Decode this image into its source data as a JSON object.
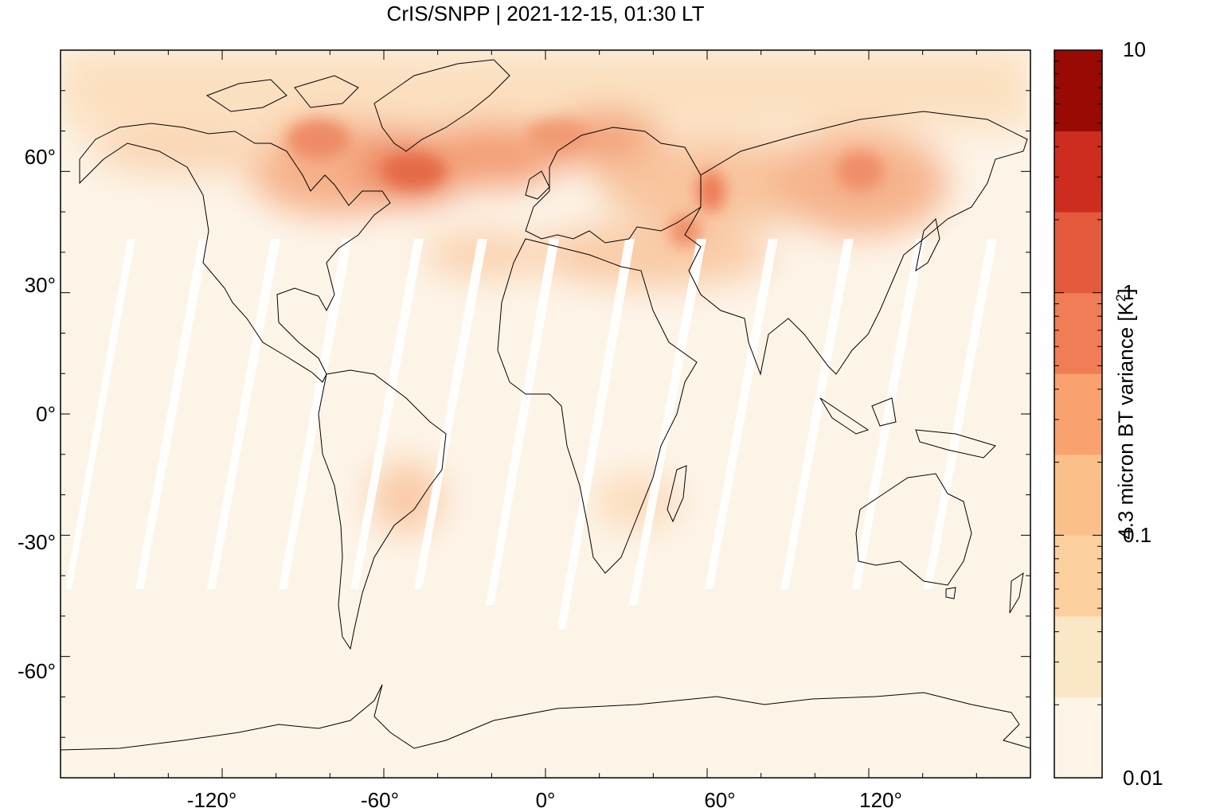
{
  "title": "CrIS/SNPP | 2021-12-15, 01:30 LT",
  "axes": {
    "x_ticks": [
      "-120°",
      "-60°",
      "0°",
      "60°",
      "120°"
    ],
    "y_ticks": [
      "60°",
      "30°",
      "0°",
      "-30°",
      "-60°"
    ]
  },
  "colorbar": {
    "label_prefix": "4.3 micron BT variance [K",
    "label_exp": "2",
    "label_suffix": "]",
    "tick_labels": [
      "10",
      "1",
      "0.1",
      "0.01"
    ],
    "scale": "log",
    "range": [
      0.01,
      10
    ],
    "levels": [
      {
        "color": "#fdf4e8"
      },
      {
        "color": "#fbe6c5"
      },
      {
        "color": "#fbd09e"
      },
      {
        "color": "#fbc08a"
      },
      {
        "color": "#f9a270"
      },
      {
        "color": "#f07d55"
      },
      {
        "color": "#e35a3c"
      },
      {
        "color": "#cc2d1f"
      },
      {
        "color": "#990a05"
      }
    ]
  },
  "chart_data": {
    "type": "heatmap",
    "title": "CrIS/SNPP | 2021-12-15, 01:30 LT",
    "x_range": [
      -180,
      180
    ],
    "y_range": [
      -90,
      90
    ],
    "x_ticks": [
      -120,
      -60,
      0,
      60,
      120
    ],
    "y_ticks": [
      60,
      30,
      0,
      -30,
      -60
    ],
    "colorbar_label": "4.3 micron BT variance [K2]",
    "colorbar_range": [
      0.01,
      10
    ],
    "colorbar_scale": "log",
    "background_value": 0.02,
    "regions": [
      {
        "lon_min": -180,
        "lon_max": 180,
        "lat_min": 70,
        "lat_max": 90,
        "value": 0.06
      },
      {
        "lon_min": -110,
        "lon_max": -50,
        "lat_min": 50,
        "lat_max": 70,
        "value": 0.5
      },
      {
        "lon_min": -60,
        "lon_max": -20,
        "lat_min": 55,
        "lat_max": 70,
        "value": 0.8
      },
      {
        "lon_min": -40,
        "lon_max": 30,
        "lat_min": 55,
        "lat_max": 70,
        "value": 0.6
      },
      {
        "lon_min": 30,
        "lon_max": 180,
        "lat_min": 40,
        "lat_max": 70,
        "value": 0.25
      },
      {
        "lon_min": 50,
        "lon_max": 70,
        "lat_min": 45,
        "lat_max": 60,
        "value": 0.7
      },
      {
        "lon_min": 90,
        "lon_max": 140,
        "lat_min": 40,
        "lat_max": 62,
        "value": 0.5
      },
      {
        "lon_min": -30,
        "lon_max": 60,
        "lat_min": 30,
        "lat_max": 45,
        "value": 0.2
      },
      {
        "lon_min": -60,
        "lon_max": -40,
        "lat_min": -35,
        "lat_max": -10,
        "value": 0.12
      },
      {
        "lon_min": 20,
        "lon_max": 50,
        "lat_min": -30,
        "lat_max": -15,
        "value": 0.08
      }
    ]
  }
}
